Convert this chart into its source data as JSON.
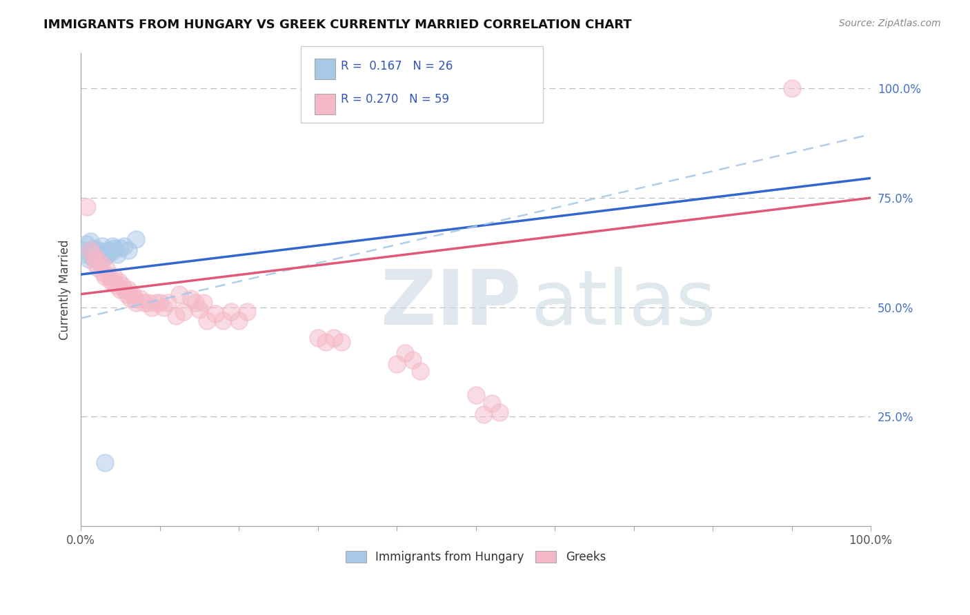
{
  "title": "IMMIGRANTS FROM HUNGARY VS GREEK CURRENTLY MARRIED CORRELATION CHART",
  "source": "Source: ZipAtlas.com",
  "ylabel": "Currently Married",
  "y_tick_labels": [
    "25.0%",
    "50.0%",
    "75.0%",
    "100.0%"
  ],
  "y_tick_values": [
    0.25,
    0.5,
    0.75,
    1.0
  ],
  "legend_bottom": [
    "Immigrants from Hungary",
    "Greeks"
  ],
  "R_hungary": 0.167,
  "N_hungary": 26,
  "R_greek": 0.27,
  "N_greek": 59,
  "blue_scatter_color": "#a8c8e8",
  "pink_scatter_color": "#f4b8c8",
  "blue_line_color": "#3366cc",
  "pink_line_color": "#e05878",
  "blue_dash_color": "#88bbdd",
  "watermark_zip_color": "#d0dce8",
  "watermark_atlas_color": "#b8ccd8",
  "hungary_x": [
    0.005,
    0.007,
    0.008,
    0.01,
    0.012,
    0.013,
    0.015,
    0.016,
    0.018,
    0.02,
    0.022,
    0.023,
    0.025,
    0.027,
    0.03,
    0.033,
    0.035,
    0.038,
    0.04,
    0.043,
    0.046,
    0.05,
    0.055,
    0.06,
    0.07,
    0.03
  ],
  "hungary_y": [
    0.63,
    0.645,
    0.62,
    0.61,
    0.65,
    0.625,
    0.615,
    0.635,
    0.62,
    0.61,
    0.63,
    0.615,
    0.625,
    0.64,
    0.615,
    0.62,
    0.63,
    0.625,
    0.64,
    0.635,
    0.62,
    0.635,
    0.64,
    0.63,
    0.655,
    0.145
  ],
  "greek_x": [
    0.008,
    0.012,
    0.015,
    0.018,
    0.02,
    0.022,
    0.025,
    0.028,
    0.03,
    0.032,
    0.035,
    0.038,
    0.04,
    0.042,
    0.045,
    0.048,
    0.05,
    0.052,
    0.055,
    0.058,
    0.06,
    0.063,
    0.065,
    0.068,
    0.07,
    0.075,
    0.08,
    0.085,
    0.09,
    0.095,
    0.1,
    0.105,
    0.11,
    0.12,
    0.125,
    0.13,
    0.14,
    0.145,
    0.15,
    0.155,
    0.16,
    0.17,
    0.18,
    0.19,
    0.2,
    0.21,
    0.3,
    0.31,
    0.32,
    0.33,
    0.4,
    0.41,
    0.42,
    0.43,
    0.5,
    0.51,
    0.52,
    0.53,
    0.9
  ],
  "greek_y": [
    0.73,
    0.63,
    0.62,
    0.6,
    0.61,
    0.59,
    0.6,
    0.58,
    0.57,
    0.59,
    0.57,
    0.56,
    0.56,
    0.57,
    0.55,
    0.56,
    0.54,
    0.55,
    0.54,
    0.53,
    0.54,
    0.52,
    0.53,
    0.52,
    0.51,
    0.52,
    0.51,
    0.51,
    0.5,
    0.51,
    0.51,
    0.5,
    0.51,
    0.48,
    0.53,
    0.49,
    0.52,
    0.51,
    0.495,
    0.51,
    0.47,
    0.485,
    0.47,
    0.49,
    0.47,
    0.49,
    0.43,
    0.42,
    0.43,
    0.42,
    0.37,
    0.395,
    0.38,
    0.355,
    0.3,
    0.255,
    0.28,
    0.26,
    1.0
  ],
  "blue_trend_intercept": 0.575,
  "blue_trend_slope": 0.22,
  "pink_trend_intercept": 0.53,
  "pink_trend_slope": 0.22,
  "dash_intercept": 0.475,
  "dash_slope": 0.42
}
